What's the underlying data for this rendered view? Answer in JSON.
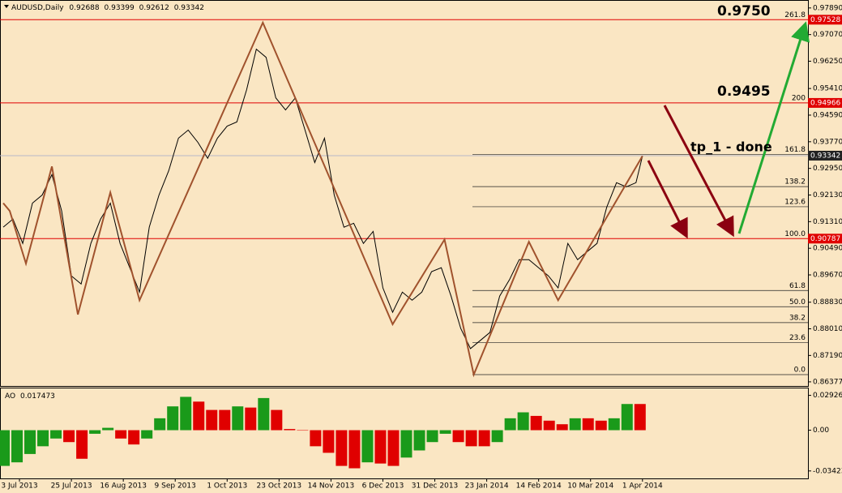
{
  "chart_data": [
    {
      "type": "line",
      "symbol": "AUDUSD,Daily",
      "quote": [
        0.92688,
        0.93399,
        0.92612,
        0.93342
      ],
      "x": [
        0,
        3,
        6,
        9,
        12,
        15,
        18,
        21,
        24,
        27,
        30,
        33,
        36,
        39,
        42,
        45,
        48,
        51,
        54,
        57,
        60,
        63,
        66,
        69,
        72,
        75,
        78,
        81,
        84,
        87,
        90,
        93,
        96,
        99,
        102,
        105,
        108,
        111,
        114,
        117,
        120,
        123,
        126,
        129,
        132,
        135,
        138,
        141,
        144,
        147,
        150,
        153,
        156,
        159,
        162,
        165,
        168,
        171,
        174,
        177,
        180,
        183,
        186,
        189,
        192,
        195,
        197
      ],
      "series": [
        {
          "color": "#000000",
          "values": [
            0.9114,
            0.9139,
            0.9064,
            0.9188,
            0.9213,
            0.9276,
            0.9164,
            0.8964,
            0.8939,
            0.9064,
            0.9139,
            0.9188,
            0.9064,
            0.8989,
            0.8914,
            0.9114,
            0.9213,
            0.9288,
            0.9388,
            0.9413,
            0.9375,
            0.9326,
            0.9388,
            0.9425,
            0.9438,
            0.9537,
            0.9662,
            0.9637,
            0.9512,
            0.9475,
            0.9512,
            0.9413,
            0.9313,
            0.9388,
            0.9213,
            0.9114,
            0.9126,
            0.9064,
            0.9101,
            0.8927,
            0.8852,
            0.8914,
            0.8889,
            0.8914,
            0.8977,
            0.8989,
            0.8902,
            0.8802,
            0.874,
            0.8765,
            0.879,
            0.8902,
            0.8952,
            0.9014,
            0.9014,
            0.8989,
            0.8964,
            0.8927,
            0.9064,
            0.9014,
            0.9039,
            0.9064,
            0.9176,
            0.9251,
            0.9238,
            0.9251,
            0.9333
          ]
        }
      ],
      "zigzag": {
        "color": "#a0522d",
        "x": [
          0,
          2,
          7,
          15,
          23,
          33,
          42,
          80,
          120,
          136,
          145,
          162,
          171,
          197
        ],
        "values": [
          0.9188,
          0.9164,
          0.9002,
          0.9301,
          0.8845,
          0.9221,
          0.8889,
          0.9744,
          0.8815,
          0.9076,
          0.866,
          0.9069,
          0.8889,
          0.9333
        ]
      },
      "levels": {
        "color": "#e00000",
        "labels": [
          "261.8",
          "200",
          "100.0"
        ],
        "values": [
          0.97528,
          0.94966,
          0.90787
        ]
      },
      "fib_lines": {
        "labels": [
          "161.8",
          "138.2",
          "123.6",
          "61.8",
          "50.0",
          "38.2",
          "23.6",
          "0.0"
        ],
        "values": [
          0.9338,
          0.9239,
          0.9177,
          0.8919,
          0.8869,
          0.882,
          0.8759,
          0.866
        ]
      },
      "last_price": 0.93342,
      "annotations": [
        "0.9750",
        "0.9495",
        "tp_1 - done"
      ],
      "xlim": [
        -1,
        248
      ],
      "ylim": [
        0.8625,
        0.9811
      ],
      "xticks": [
        {
          "value": 5,
          "label": "3 Jul 2013"
        },
        {
          "value": 21,
          "label": "25 Jul 2013"
        },
        {
          "value": 37,
          "label": "16 Aug 2013"
        },
        {
          "value": 53,
          "label": "9 Sep 2013"
        },
        {
          "value": 69,
          "label": "1 Oct 2013"
        },
        {
          "value": 85,
          "label": "23 Oct 2013"
        },
        {
          "value": 101,
          "label": "14 Nov 2013"
        },
        {
          "value": 117,
          "label": "6 Dec 2013"
        },
        {
          "value": 133,
          "label": "31 Dec 2013"
        },
        {
          "value": 149,
          "label": "23 Jan 2014"
        },
        {
          "value": 165,
          "label": "14 Feb 2014"
        },
        {
          "value": 181,
          "label": "10 Mar 2014"
        },
        {
          "value": 197,
          "label": "1 Apr 2014"
        }
      ],
      "yticks": [
        {
          "value": 0.9789,
          "label": "0.97890"
        },
        {
          "value": 0.9707,
          "label": "0.97070"
        },
        {
          "value": 0.9625,
          "label": "0.96250"
        },
        {
          "value": 0.9541,
          "label": "0.95410"
        },
        {
          "value": 0.9459,
          "label": "0.94590"
        },
        {
          "value": 0.9377,
          "label": "0.93770"
        },
        {
          "value": 0.9295,
          "label": "0.92950"
        },
        {
          "value": 0.9213,
          "label": "0.92130"
        },
        {
          "value": 0.9131,
          "label": "0.91310"
        },
        {
          "value": 0.9049,
          "label": "0.90490"
        },
        {
          "value": 0.8967,
          "label": "0.89670"
        },
        {
          "value": 0.8883,
          "label": "0.88830"
        },
        {
          "value": 0.8801,
          "label": "0.88010"
        },
        {
          "value": 0.8719,
          "label": "0.87190"
        },
        0.86377
      ]
    },
    {
      "type": "bar",
      "label": "AO",
      "value": 0.017473,
      "up_color": "#1a9a1a",
      "down_color": "#e00000",
      "x": [
        0,
        4,
        8,
        12,
        16,
        20,
        24,
        28,
        32,
        36,
        40,
        44,
        48,
        52,
        56,
        60,
        64,
        68,
        72,
        76,
        80,
        84,
        88,
        92,
        96,
        100,
        104,
        108,
        112,
        116,
        120,
        124,
        128,
        132,
        136,
        140,
        144,
        148,
        152,
        156,
        160,
        164,
        168,
        172,
        176,
        180,
        184,
        188,
        192,
        196
      ],
      "values": [
        -0.03,
        -0.027,
        -0.02,
        -0.0135,
        -0.007,
        -0.01,
        -0.024,
        -0.003,
        0.002,
        -0.007,
        -0.012,
        -0.007,
        0.01,
        0.02,
        0.028,
        0.024,
        0.017,
        0.017,
        0.02,
        0.019,
        0.027,
        0.017,
        0.001,
        0,
        -0.0135,
        -0.019,
        -0.03,
        -0.032,
        -0.027,
        -0.028,
        -0.03,
        -0.023,
        -0.017,
        -0.01,
        -0.003,
        -0.01,
        -0.0135,
        -0.0135,
        -0.01,
        0.01,
        0.015,
        0.012,
        0.008,
        0.005,
        0.01,
        0.01,
        0.008,
        0.01,
        0.022,
        0.022
      ],
      "xlim": [
        -1,
        248
      ],
      "ylim": [
        -0.0405,
        0.0351
      ],
      "yticks": [
        0.029265,
        {
          "value": 0,
          "label": "0.00"
        },
        -0.034239
      ]
    }
  ]
}
